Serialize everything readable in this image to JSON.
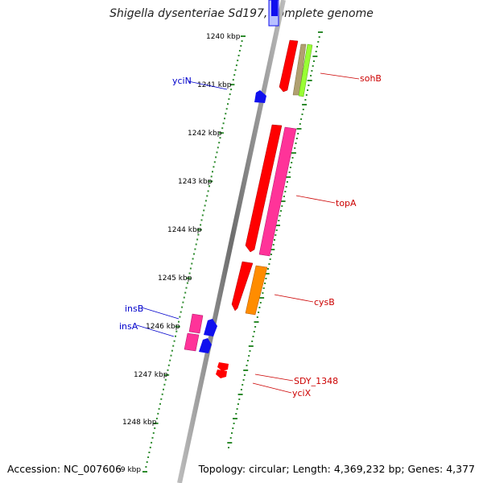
{
  "title": "Shigella dysenteriae Sd197, complete genome",
  "footer": {
    "accession": "Accession: NC_007606",
    "topology": "Topology: circular; Length: 4,369,232 bp; Genes: 4,377"
  },
  "ticks": {
    "labels": [
      "1240 kbp",
      "1241 kbp",
      "1242 kbp",
      "1243 kbp",
      "1244 kbp",
      "1245 kbp",
      "1246 kbp",
      "1247 kbp",
      "1248 kbp",
      "·9 kbp"
    ]
  },
  "genes": {
    "reverse_strand": [
      "yciN",
      "insB",
      "insA"
    ],
    "forward_strand": [
      "sohB",
      "topA",
      "cysB",
      "SDY_1348",
      "yciX"
    ]
  },
  "colors": {
    "backbone": "#888888",
    "tick": "#2e8b2e",
    "reverse_label": "#0000cc",
    "forward_label": "#cc0000",
    "gene_red": "#ff0000",
    "gene_pink": "#ff3399",
    "gene_orange": "#ff8c00",
    "gene_green": "#99ff33",
    "gene_khaki": "#b0a070",
    "gene_blue": "#1010ee"
  }
}
